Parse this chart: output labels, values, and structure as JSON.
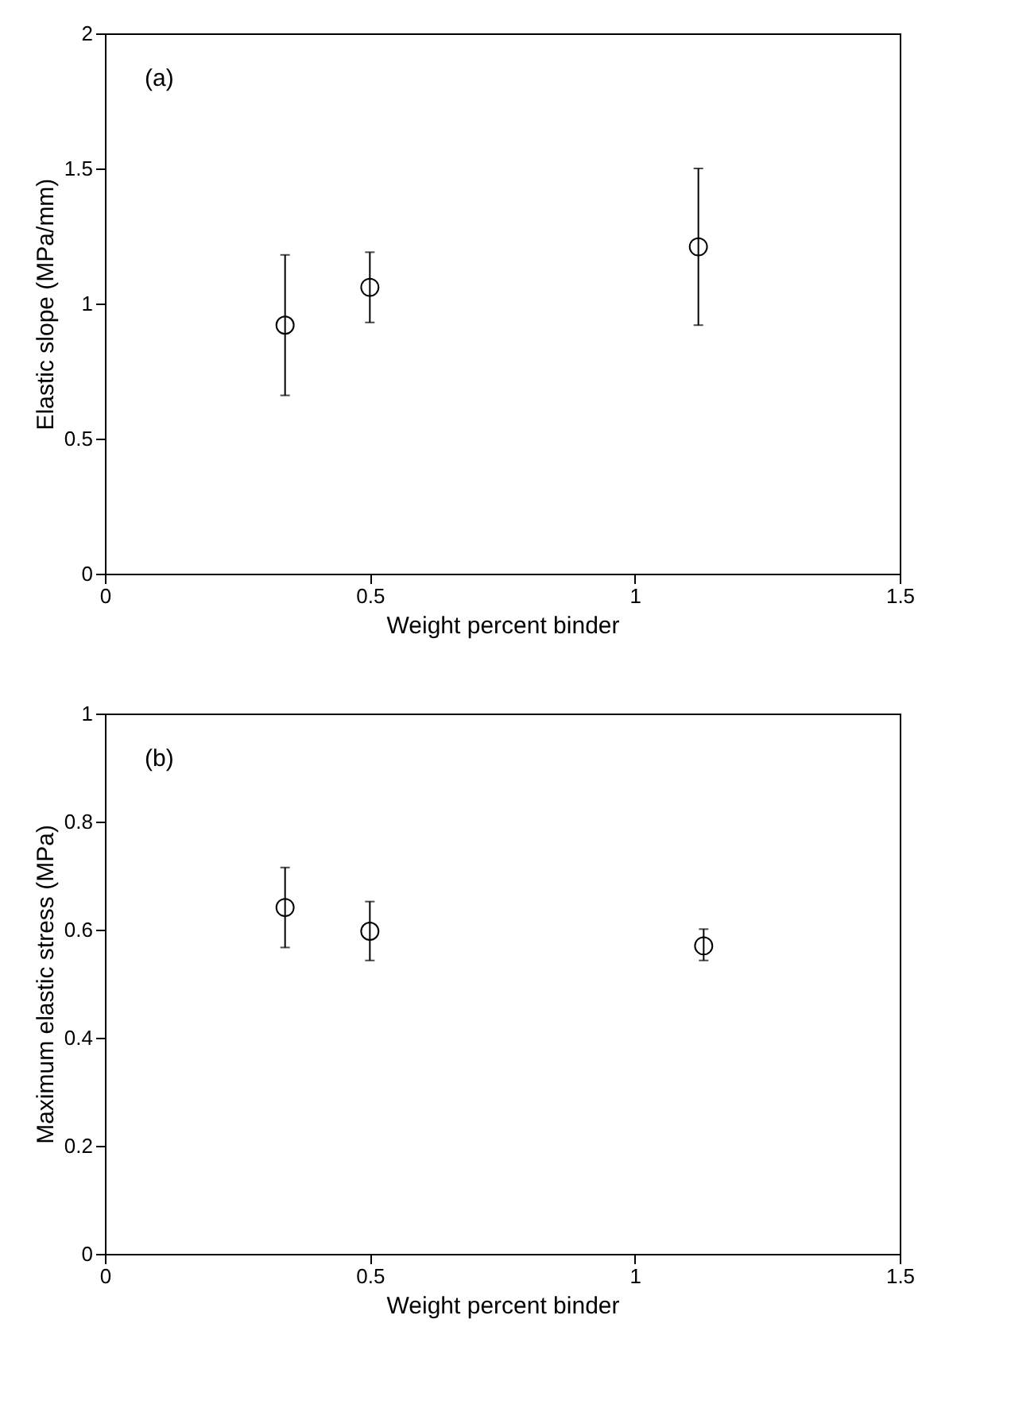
{
  "chart_data": [
    {
      "type": "scatter",
      "xlabel": "Weight percent binder",
      "ylabel": "Elastic slope (MPa/mm)",
      "annotations": [
        "(a)"
      ],
      "marker": "circle",
      "xlim": [
        0,
        1.5
      ],
      "ylim": [
        0,
        2
      ],
      "xticks": [
        0,
        0.5,
        1,
        1.5
      ],
      "yticks": [
        0,
        0.5,
        1,
        1.5,
        2
      ],
      "series": [
        {
          "color": "#000000",
          "x": [
            0.34,
            0.5,
            1.12
          ],
          "values": [
            0.92,
            1.06,
            1.21
          ],
          "errors": [
            [
              0.66,
              1.18
            ],
            [
              0.93,
              1.19
            ],
            [
              0.92,
              1.5
            ]
          ]
        }
      ]
    },
    {
      "type": "scatter",
      "xlabel": "Weight percent binder",
      "ylabel": "Maximum elastic stress (MPa)",
      "annotations": [
        "(b)"
      ],
      "marker": "circle",
      "xlim": [
        0,
        1.5
      ],
      "ylim": [
        0,
        1
      ],
      "xticks": [
        0,
        0.5,
        1,
        1.5
      ],
      "yticks": [
        0,
        0.2,
        0.4,
        0.6,
        0.8,
        1
      ],
      "series": [
        {
          "color": "#000000",
          "x": [
            0.34,
            0.5,
            1.13
          ],
          "values": [
            0.641,
            0.597,
            0.57
          ],
          "errors": [
            [
              0.567,
              0.715
            ],
            [
              0.543,
              0.652
            ],
            [
              0.543,
              0.601
            ]
          ]
        }
      ]
    }
  ]
}
